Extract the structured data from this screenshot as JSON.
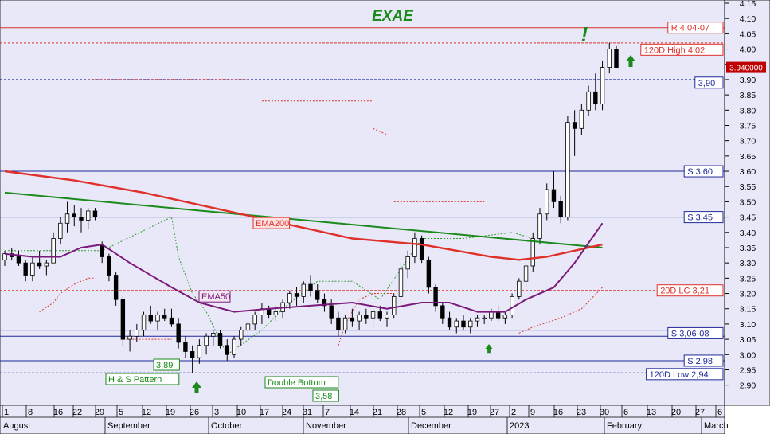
{
  "chart_data": {
    "type": "candlestick",
    "title": "EXAE",
    "x_axis": {
      "day_ticks": [
        "1",
        "8",
        "16",
        "22",
        "29",
        "5",
        "12",
        "19",
        "26",
        "3",
        "10",
        "17",
        "24",
        "31",
        "7",
        "14",
        "21",
        "28",
        "5",
        "12",
        "19",
        "27",
        "2",
        "9",
        "16",
        "23",
        "30",
        "6",
        "13",
        "20",
        "27",
        "6"
      ],
      "month_labels": [
        "August",
        "September",
        "October",
        "November",
        "December",
        "2023",
        "February",
        "March"
      ]
    },
    "y_axis": {
      "ylim": [
        2.86,
        4.15
      ],
      "ticks": [
        "4.15",
        "4.10",
        "4.05",
        "4.00",
        "3.95",
        "3.90",
        "3.85",
        "3.80",
        "3.75",
        "3.70",
        "3.65",
        "3.60",
        "3.55",
        "3.50",
        "3.45",
        "3.40",
        "3.35",
        "3.30",
        "3.25",
        "3.20",
        "3.15",
        "3.10",
        "3.05",
        "3.00",
        "2.95",
        "2.90"
      ]
    },
    "last_price": {
      "label": "3.940000",
      "value": 3.94
    },
    "candles": [
      [
        3.31,
        3.34,
        3.29,
        3.33
      ],
      [
        3.33,
        3.35,
        3.31,
        3.32
      ],
      [
        3.32,
        3.34,
        3.29,
        3.3
      ],
      [
        3.3,
        3.31,
        3.24,
        3.26
      ],
      [
        3.26,
        3.32,
        3.24,
        3.3
      ],
      [
        3.3,
        3.34,
        3.28,
        3.29
      ],
      [
        3.29,
        3.31,
        3.26,
        3.3
      ],
      [
        3.3,
        3.4,
        3.3,
        3.38
      ],
      [
        3.38,
        3.45,
        3.36,
        3.43
      ],
      [
        3.43,
        3.5,
        3.4,
        3.46
      ],
      [
        3.46,
        3.49,
        3.42,
        3.45
      ],
      [
        3.45,
        3.48,
        3.4,
        3.44
      ],
      [
        3.44,
        3.48,
        3.41,
        3.47
      ],
      [
        3.47,
        3.48,
        3.44,
        3.45
      ],
      [
        3.36,
        3.37,
        3.3,
        3.32
      ],
      [
        3.32,
        3.33,
        3.24,
        3.26
      ],
      [
        3.26,
        3.27,
        3.16,
        3.18
      ],
      [
        3.18,
        3.19,
        3.03,
        3.05
      ],
      [
        3.05,
        3.08,
        3.01,
        3.06
      ],
      [
        3.06,
        3.1,
        3.04,
        3.08
      ],
      [
        3.08,
        3.14,
        3.06,
        3.13
      ],
      [
        3.13,
        3.16,
        3.1,
        3.11
      ],
      [
        3.11,
        3.14,
        3.08,
        3.13
      ],
      [
        3.13,
        3.15,
        3.11,
        3.12
      ],
      [
        3.12,
        3.15,
        3.09,
        3.1
      ],
      [
        3.1,
        3.12,
        3.02,
        3.04
      ],
      [
        3.04,
        3.06,
        2.99,
        3.01
      ],
      [
        3.01,
        3.03,
        2.94,
        2.99
      ],
      [
        2.99,
        3.05,
        2.97,
        3.03
      ],
      [
        3.03,
        3.07,
        3.0,
        3.06
      ],
      [
        3.06,
        3.08,
        3.03,
        3.07
      ],
      [
        3.07,
        3.08,
        3.02,
        3.03
      ],
      [
        3.03,
        3.05,
        2.98,
        3.0
      ],
      [
        3.0,
        3.06,
        2.99,
        3.05
      ],
      [
        3.05,
        3.09,
        3.03,
        3.08
      ],
      [
        3.08,
        3.11,
        3.06,
        3.1
      ],
      [
        3.1,
        3.14,
        3.08,
        3.13
      ],
      [
        3.13,
        3.17,
        3.1,
        3.15
      ],
      [
        3.15,
        3.16,
        3.12,
        3.13
      ],
      [
        3.13,
        3.16,
        3.11,
        3.14
      ],
      [
        3.14,
        3.18,
        3.12,
        3.17
      ],
      [
        3.17,
        3.21,
        3.15,
        3.2
      ],
      [
        3.2,
        3.22,
        3.16,
        3.19
      ],
      [
        3.19,
        3.24,
        3.17,
        3.23
      ],
      [
        3.23,
        3.26,
        3.19,
        3.21
      ],
      [
        3.21,
        3.23,
        3.17,
        3.18
      ],
      [
        3.18,
        3.2,
        3.14,
        3.16
      ],
      [
        3.16,
        3.18,
        3.1,
        3.12
      ],
      [
        3.12,
        3.14,
        3.06,
        3.08
      ],
      [
        3.08,
        3.13,
        3.07,
        3.12
      ],
      [
        3.12,
        3.15,
        3.09,
        3.11
      ],
      [
        3.11,
        3.14,
        3.08,
        3.13
      ],
      [
        3.13,
        3.15,
        3.1,
        3.12
      ],
      [
        3.12,
        3.15,
        3.09,
        3.14
      ],
      [
        3.14,
        3.16,
        3.11,
        3.12
      ],
      [
        3.12,
        3.14,
        3.09,
        3.13
      ],
      [
        3.13,
        3.2,
        3.12,
        3.19
      ],
      [
        3.19,
        3.3,
        3.17,
        3.28
      ],
      [
        3.28,
        3.34,
        3.25,
        3.32
      ],
      [
        3.32,
        3.4,
        3.3,
        3.38
      ],
      [
        3.38,
        3.39,
        3.3,
        3.31
      ],
      [
        3.31,
        3.32,
        3.2,
        3.22
      ],
      [
        3.22,
        3.23,
        3.14,
        3.16
      ],
      [
        3.16,
        3.17,
        3.1,
        3.12
      ],
      [
        3.12,
        3.14,
        3.08,
        3.09
      ],
      [
        3.09,
        3.12,
        3.07,
        3.11
      ],
      [
        3.11,
        3.13,
        3.08,
        3.09
      ],
      [
        3.09,
        3.12,
        3.07,
        3.11
      ],
      [
        3.11,
        3.13,
        3.09,
        3.12
      ],
      [
        3.12,
        3.13,
        3.1,
        3.12
      ],
      [
        3.12,
        3.15,
        3.11,
        3.14
      ],
      [
        3.14,
        3.16,
        3.11,
        3.12
      ],
      [
        3.12,
        3.14,
        3.1,
        3.13
      ],
      [
        3.13,
        3.2,
        3.12,
        3.19
      ],
      [
        3.19,
        3.25,
        3.18,
        3.24
      ],
      [
        3.24,
        3.3,
        3.22,
        3.29
      ],
      [
        3.29,
        3.4,
        3.27,
        3.38
      ],
      [
        3.38,
        3.48,
        3.36,
        3.46
      ],
      [
        3.46,
        3.56,
        3.44,
        3.54
      ],
      [
        3.54,
        3.6,
        3.48,
        3.5
      ],
      [
        3.5,
        3.52,
        3.43,
        3.45
      ],
      [
        3.45,
        3.78,
        3.44,
        3.76
      ],
      [
        3.76,
        3.8,
        3.65,
        3.74
      ],
      [
        3.74,
        3.82,
        3.72,
        3.8
      ],
      [
        3.8,
        3.88,
        3.78,
        3.86
      ],
      [
        3.86,
        3.92,
        3.8,
        3.82
      ],
      [
        3.82,
        3.96,
        3.8,
        3.94
      ],
      [
        3.94,
        4.02,
        3.92,
        4.0
      ],
      [
        4.0,
        4.01,
        3.94,
        3.94
      ]
    ],
    "lines": {
      "resistance": {
        "label": "R 4,04-07",
        "value": 4.07
      },
      "high_120d": {
        "label": "120D High 4,02",
        "value": 4.02
      },
      "level_390": {
        "label": "3,90",
        "value": 3.9
      },
      "support_360": {
        "label": "S 3,60",
        "value": 3.6
      },
      "support_345": {
        "label": "S 3,45",
        "value": 3.45
      },
      "lc_20d": {
        "label": "20D LC 3,21",
        "value": 3.21
      },
      "support_306": {
        "label": "S 3,06-08",
        "value": 3.06,
        "value_b": 3.08
      },
      "support_298": {
        "label": "S 2,98",
        "value": 2.98
      },
      "low_120d": {
        "label": "120D Low 2,94",
        "value": 2.94
      }
    },
    "ema200": {
      "label": "EMA200",
      "points": [
        [
          0,
          3.6
        ],
        [
          10,
          3.57
        ],
        [
          20,
          3.53
        ],
        [
          30,
          3.48
        ],
        [
          40,
          3.43
        ],
        [
          50,
          3.38
        ],
        [
          60,
          3.36
        ],
        [
          70,
          3.32
        ],
        [
          74,
          3.31
        ],
        [
          78,
          3.32
        ],
        [
          82,
          3.34
        ],
        [
          86,
          3.36
        ]
      ]
    },
    "ema50": {
      "label": "EMA50",
      "points": [
        [
          0,
          3.33
        ],
        [
          4,
          3.32
        ],
        [
          8,
          3.32
        ],
        [
          11,
          3.35
        ],
        [
          14,
          3.36
        ],
        [
          18,
          3.3
        ],
        [
          24,
          3.22
        ],
        [
          28,
          3.17
        ],
        [
          33,
          3.14
        ],
        [
          38,
          3.15
        ],
        [
          44,
          3.16
        ],
        [
          50,
          3.17
        ],
        [
          55,
          3.15
        ],
        [
          60,
          3.17
        ],
        [
          64,
          3.17
        ],
        [
          68,
          3.14
        ],
        [
          72,
          3.14
        ],
        [
          75,
          3.18
        ],
        [
          79,
          3.22
        ],
        [
          82,
          3.3
        ],
        [
          86,
          3.43
        ]
      ]
    },
    "trendline": {
      "points": [
        [
          0,
          3.53
        ],
        [
          86,
          3.35
        ]
      ]
    },
    "annotations": {
      "exclamation": "!",
      "hs_pattern": "H & S Pattern",
      "hs_value": "3,89",
      "double_bottom": "Double Bottom",
      "db_value": "3,58"
    }
  }
}
